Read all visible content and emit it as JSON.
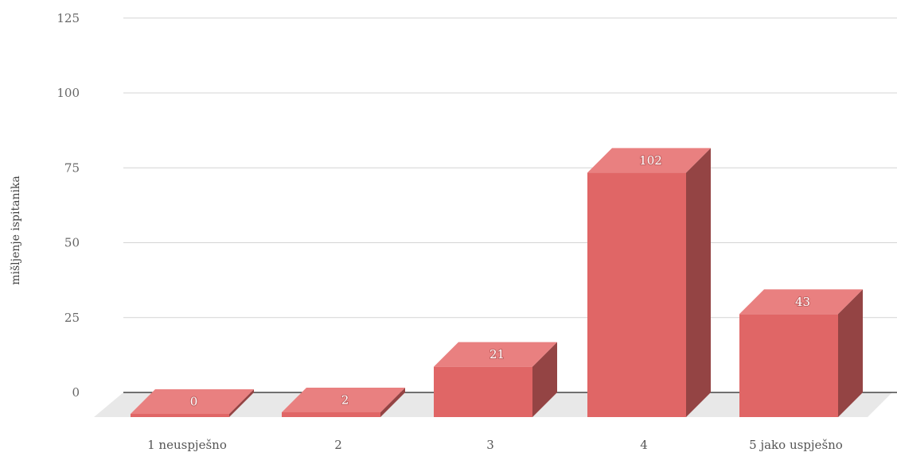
{
  "chart_data": {
    "type": "bar",
    "style": "3d",
    "categories": [
      "1 neuspješno",
      "2",
      "3",
      "4",
      "5 jako uspješno"
    ],
    "values": [
      0,
      2,
      21,
      102,
      43
    ],
    "ylabel": "mišljenje ispitanika",
    "ylim": [
      0,
      125
    ],
    "yticks": [
      0,
      25,
      50,
      75,
      100,
      125
    ],
    "grid": true,
    "legend": "none",
    "colors": {
      "bar_front": "#e06666",
      "bar_top": "#e98080",
      "bar_side": "#944444",
      "floor": "#e8e8e8",
      "grid": "#d4d4d4",
      "zero_line": "#222222"
    }
  }
}
